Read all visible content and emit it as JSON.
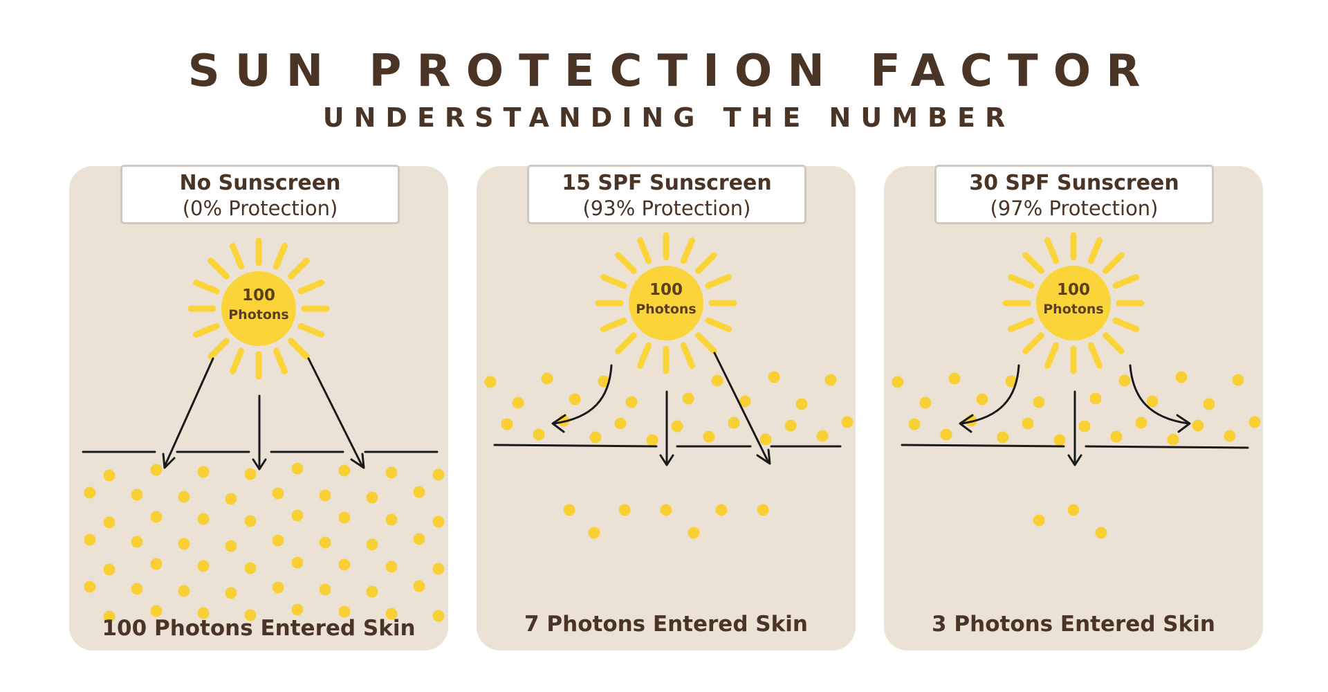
{
  "title": "SUN PROTECTION FACTOR",
  "subtitle": "UNDERSTANDING THE NUMBER",
  "colors": {
    "panel": "#ebe2d5",
    "sun": "#fbd43a",
    "photon": "#f8d034",
    "text": "#4a3426",
    "line": "#1a1a1a"
  },
  "panels": [
    {
      "label": "No Sunscreen",
      "protection": "(0% Protection)",
      "sun_count": "100",
      "sun_unit": "Photons",
      "result": "100 Photons Entered Skin",
      "photons_entered": 100
    },
    {
      "label": "15 SPF Sunscreen",
      "protection": "(93% Protection)",
      "sun_count": "100",
      "sun_unit": "Photons",
      "result": "7 Photons Entered Skin",
      "photons_entered": 7
    },
    {
      "label": "30 SPF Sunscreen",
      "protection": "(97% Protection)",
      "sun_count": "100",
      "sun_unit": "Photons",
      "result": "3 Photons Entered Skin",
      "photons_entered": 3
    }
  ]
}
